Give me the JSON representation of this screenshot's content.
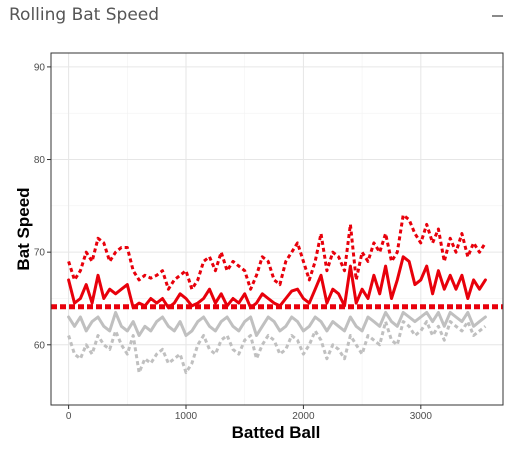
{
  "panel": {
    "title": "Rolling Bat Speed",
    "collapse_icon": "minus-icon"
  },
  "chart_data": {
    "type": "line",
    "title": "",
    "xlabel": "Batted Ball",
    "ylabel": "Bat Speed",
    "xlim": [
      -150,
      3700
    ],
    "ylim": [
      53.5,
      91.5
    ],
    "x_ticks": [
      0,
      1000,
      2000,
      3000
    ],
    "y_ticks": [
      60,
      70,
      80,
      90
    ],
    "grid": true,
    "legend": "none",
    "reference_line": {
      "y": 64.1,
      "style": "dotted",
      "color": "#e8000b"
    },
    "series": [
      {
        "style": "dotted",
        "color": "#e8000b",
        "x": [
          0,
          50,
          100,
          150,
          200,
          250,
          300,
          350,
          400,
          450,
          500,
          550,
          600,
          650,
          700,
          750,
          800,
          850,
          900,
          950,
          1000,
          1050,
          1100,
          1150,
          1200,
          1250,
          1300,
          1350,
          1400,
          1450,
          1500,
          1550,
          1600,
          1650,
          1700,
          1750,
          1800,
          1850,
          1900,
          1950,
          2000,
          2050,
          2100,
          2150,
          2200,
          2250,
          2300,
          2350,
          2400,
          2450,
          2500,
          2550,
          2600,
          2650,
          2700,
          2750,
          2800,
          2850,
          2900,
          2950,
          3000,
          3050,
          3100,
          3150,
          3200,
          3250,
          3300,
          3350,
          3400,
          3450,
          3500,
          3550
        ],
        "y": [
          69,
          67,
          68,
          70,
          69,
          71.5,
          71,
          69,
          70,
          70.5,
          70.5,
          68,
          67,
          67.5,
          67.2,
          67.5,
          68,
          66,
          67,
          67.5,
          68,
          66,
          67,
          69,
          69.5,
          68,
          70,
          68,
          69,
          68.5,
          68,
          66,
          67.5,
          69.5,
          69,
          67,
          66.5,
          69,
          70,
          71,
          69,
          67,
          69,
          72,
          68,
          70,
          69.5,
          68,
          73,
          67,
          70,
          69,
          71,
          70,
          72,
          69,
          70,
          74,
          73.5,
          72,
          71,
          73,
          71,
          72.5,
          69,
          71.5,
          70,
          72,
          69.5,
          71,
          70,
          71
        ]
      },
      {
        "style": "solid",
        "color": "#e8000b",
        "x": [
          0,
          50,
          100,
          150,
          200,
          250,
          300,
          350,
          400,
          450,
          500,
          550,
          600,
          650,
          700,
          750,
          800,
          850,
          900,
          950,
          1000,
          1050,
          1100,
          1150,
          1200,
          1250,
          1300,
          1350,
          1400,
          1450,
          1500,
          1550,
          1600,
          1650,
          1700,
          1750,
          1800,
          1850,
          1900,
          1950,
          2000,
          2050,
          2100,
          2150,
          2200,
          2250,
          2300,
          2350,
          2400,
          2450,
          2500,
          2550,
          2600,
          2650,
          2700,
          2750,
          2800,
          2850,
          2900,
          2950,
          3000,
          3050,
          3100,
          3150,
          3200,
          3250,
          3300,
          3350,
          3400,
          3450,
          3500,
          3550
        ],
        "y": [
          67,
          64.5,
          65,
          66.5,
          64.5,
          67.5,
          65,
          66,
          65.5,
          66,
          66.5,
          64,
          64.5,
          64.2,
          65,
          64.5,
          65,
          64,
          64.5,
          65.5,
          65,
          64.2,
          64.5,
          65,
          66,
          64.5,
          65.5,
          64.2,
          65,
          64.5,
          65.5,
          64,
          64.5,
          65.5,
          65,
          64.5,
          64.2,
          65,
          65.8,
          66,
          65,
          64.5,
          66,
          67.5,
          64.5,
          66,
          65.5,
          64.2,
          68.5,
          64.5,
          66,
          65,
          67.5,
          65.5,
          68.5,
          65,
          67,
          69.5,
          69,
          66.5,
          67,
          68.5,
          65.5,
          68,
          66,
          67.5,
          66,
          67.5,
          65,
          67,
          66,
          67
        ]
      },
      {
        "style": "solid",
        "color": "#c0c0c0",
        "x": [
          0,
          50,
          100,
          150,
          200,
          250,
          300,
          350,
          400,
          450,
          500,
          550,
          600,
          650,
          700,
          750,
          800,
          850,
          900,
          950,
          1000,
          1050,
          1100,
          1150,
          1200,
          1250,
          1300,
          1350,
          1400,
          1450,
          1500,
          1550,
          1600,
          1650,
          1700,
          1750,
          1800,
          1850,
          1900,
          1950,
          2000,
          2050,
          2100,
          2150,
          2200,
          2250,
          2300,
          2350,
          2400,
          2450,
          2500,
          2550,
          2600,
          2650,
          2700,
          2750,
          2800,
          2850,
          2900,
          2950,
          3000,
          3050,
          3100,
          3150,
          3200,
          3250,
          3300,
          3350,
          3400,
          3450,
          3500,
          3550
        ],
        "y": [
          63,
          62,
          63,
          61.5,
          62.5,
          63,
          62,
          61.5,
          63.5,
          62,
          61.5,
          62.5,
          61,
          62,
          61.5,
          62.5,
          63,
          62,
          61.5,
          62.5,
          61,
          61.5,
          62.5,
          63,
          62,
          61.5,
          62.5,
          63,
          62,
          61.5,
          62.5,
          63,
          61,
          62,
          63,
          62.5,
          61.5,
          62,
          63,
          62.5,
          61.5,
          62,
          63,
          62.5,
          61.5,
          62.5,
          62,
          61.5,
          63,
          62,
          61.5,
          63,
          62.5,
          62,
          63.5,
          62.5,
          62,
          63.5,
          63,
          62.5,
          63,
          63.5,
          62.5,
          63.5,
          62,
          63.5,
          63,
          62.5,
          63.5,
          62,
          62.5,
          63
        ]
      },
      {
        "style": "dotted",
        "color": "#c0c0c0",
        "x": [
          0,
          50,
          100,
          150,
          200,
          250,
          300,
          350,
          400,
          450,
          500,
          550,
          600,
          650,
          700,
          750,
          800,
          850,
          900,
          950,
          1000,
          1050,
          1100,
          1150,
          1200,
          1250,
          1300,
          1350,
          1400,
          1450,
          1500,
          1550,
          1600,
          1650,
          1700,
          1750,
          1800,
          1850,
          1900,
          1950,
          2000,
          2050,
          2100,
          2150,
          2200,
          2250,
          2300,
          2350,
          2400,
          2450,
          2500,
          2550,
          2600,
          2650,
          2700,
          2750,
          2800,
          2850,
          2900,
          2950,
          3000,
          3050,
          3100,
          3150,
          3200,
          3250,
          3300,
          3350,
          3400,
          3450,
          3500,
          3550
        ],
        "y": [
          61,
          59,
          58.5,
          60,
          59,
          61,
          60,
          59.5,
          61.5,
          60,
          59,
          61,
          57,
          58.5,
          58,
          59,
          59.5,
          58,
          58.5,
          59,
          57,
          58,
          60,
          61,
          59.5,
          59,
          60.5,
          61,
          59.5,
          59,
          60.5,
          61,
          58.5,
          60,
          61,
          60.5,
          59,
          59.5,
          61,
          60.5,
          59,
          60,
          61.5,
          60.5,
          58.5,
          60,
          59.5,
          58.5,
          61,
          60,
          59,
          61,
          60.5,
          60,
          62.5,
          60.5,
          60,
          62.5,
          62,
          61,
          61.5,
          62.5,
          61,
          62,
          60.5,
          62.5,
          62,
          61.5,
          62.5,
          61,
          61.5,
          62
        ]
      }
    ]
  }
}
